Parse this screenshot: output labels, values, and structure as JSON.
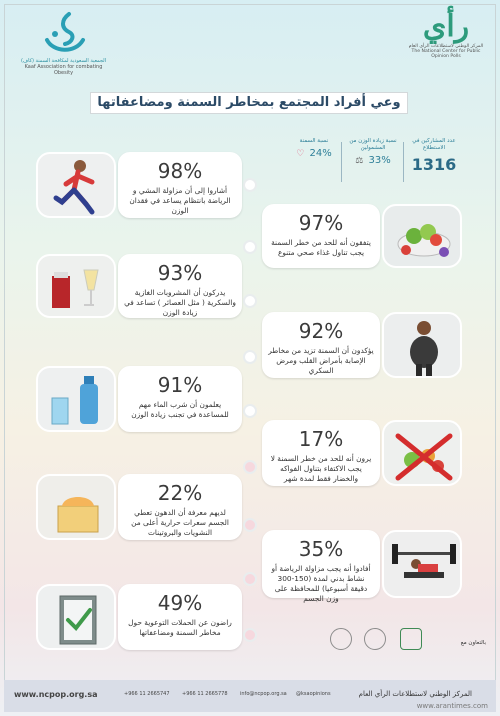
{
  "header": {
    "left_logo": {
      "icon": "kaaf-logo",
      "line1": "الجمعية السعودية لمكافحة السمنة (كاف)",
      "line2": "Kaaf Association for combating Obesity"
    },
    "right_logo": {
      "word": "رأي",
      "line1": "المركز الوطني لاستطلاعات الرأي العام",
      "line2": "The National Center for Public Opinion Polls"
    },
    "title": "وعي أفراد المجتمع بمخاطر السمنة ومضاعفاتها"
  },
  "stats": [
    {
      "label": "عدد المشاركين في الاستطلاع",
      "value": "1316",
      "icon": ""
    },
    {
      "label": "نسبة زيادة الوزن من المشمولين",
      "value": "33%",
      "icon": "scale-icon"
    },
    {
      "label": "نسبة السمنة",
      "value": "24%",
      "icon": "heart-icon"
    }
  ],
  "cards": [
    {
      "pct": "98%",
      "text": "أشاروا إلى أن مزاولة المشي و الرياضة بانتظام يساعد في فقدان الوزن",
      "image": "runner"
    },
    {
      "pct": "97%",
      "text": "يتفقون أنه للحد من خطر السمنة يجب تناول غذاء صحي متنوع",
      "image": "healthy-food"
    },
    {
      "pct": "93%",
      "text": "يدركون أن المشروبات الغازية والسكرية ( مثل العصائر ) تساعد في زيادة الوزن",
      "image": "soft-drinks"
    },
    {
      "pct": "92%",
      "text": "يؤكدون أن السمنة تزيد من مخاطر الإصابة بأمراض القلب ومرض السكري",
      "image": "obese-man"
    },
    {
      "pct": "91%",
      "text": "يعلمون أن شرب الماء مهم للمساعدة في تجنب زيادة الوزن",
      "image": "water"
    },
    {
      "pct": "17%",
      "text": "يرون أنه للحد من خطر السمنة لا يجب الاكتفاء بتناول الفواكه والخضار فقط لمدة شهر",
      "image": "no-vegetables"
    },
    {
      "pct": "22%",
      "text": "لديهم معرفة أن الدهون تعطي الجسم سعرات حرارية أعلى من النشويات والبروتينات",
      "image": "fats"
    },
    {
      "pct": "35%",
      "text": "أفادوا أنه يجب مزاولة الرياضة أو نشاط بدني لمدة (150-300 دقيقة أسبوعيا) للمحافظة على وزن الجسم",
      "image": "weightlifting"
    },
    {
      "pct": "49%",
      "text": "راضون عن الحملات التوعوية حول مخاطر السمنة ومضاعفاتها",
      "image": "checklist"
    }
  ],
  "cooperation": "بالتعاون مع",
  "footer": {
    "site": "www.ncpop.org.sa",
    "phone1": "+966 11 2665747",
    "phone2": "+966 11 2665778",
    "email": "info@ncpop.org.sa",
    "social": "@ksaopinions",
    "org": "المركز الوطني لاستطلاعات الرأي العام",
    "watermark": "www.arantimes.com"
  },
  "colors": {
    "title": "#2b4a66",
    "stat": "#2d7f98",
    "accent_green": "#2d9b7c"
  }
}
